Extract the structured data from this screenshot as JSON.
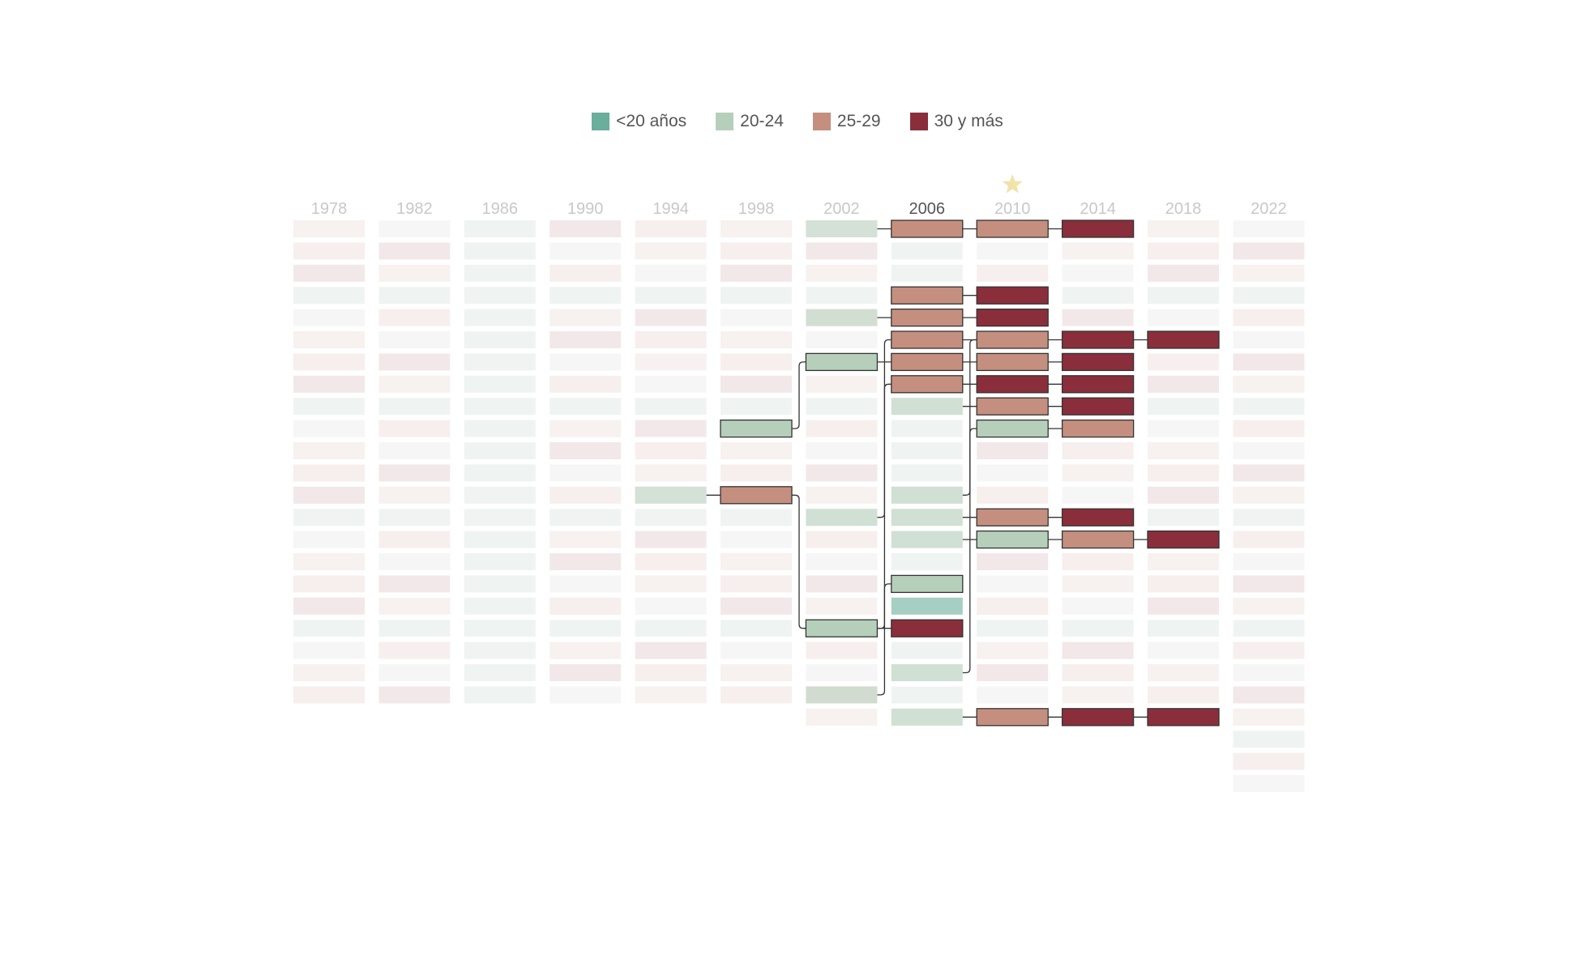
{
  "legend": [
    {
      "label": "<20 años",
      "color": "#6aae9c"
    },
    {
      "label": "20-24",
      "color": "#b6cfbb"
    },
    {
      "label": "25-29",
      "color": "#c48f7f"
    },
    {
      "label": "30 y más",
      "color": "#8a2e3c"
    }
  ],
  "star_icon": "star-icon",
  "chart_data": {
    "type": "table",
    "highlight_column": "2006",
    "star_column": "2010",
    "columns": [
      "1978",
      "1982",
      "1986",
      "1990",
      "1994",
      "1998",
      "2002",
      "2006",
      "2010",
      "2014",
      "2018",
      "2022"
    ],
    "categories": [
      "<20 años",
      "20-24",
      "25-29",
      "30 y más"
    ],
    "highlighted_cells": [
      {
        "year": "1994",
        "row": 12,
        "category": "20-24"
      },
      {
        "year": "1998",
        "row": 9,
        "category": "20-24"
      },
      {
        "year": "1998",
        "row": 12,
        "category": "25-29"
      },
      {
        "year": "2002",
        "row": 0,
        "category": "20-24"
      },
      {
        "year": "2002",
        "row": 4,
        "category": "20-24"
      },
      {
        "year": "2002",
        "row": 6,
        "category": "20-24"
      },
      {
        "year": "2002",
        "row": 13,
        "category": "20-24"
      },
      {
        "year": "2002",
        "row": 18,
        "category": "20-24"
      },
      {
        "year": "2002",
        "row": 21,
        "category": "20-24"
      },
      {
        "year": "2006",
        "row": 0,
        "category": "25-29"
      },
      {
        "year": "2006",
        "row": 3,
        "category": "25-29"
      },
      {
        "year": "2006",
        "row": 4,
        "category": "25-29"
      },
      {
        "year": "2006",
        "row": 5,
        "category": "25-29"
      },
      {
        "year": "2006",
        "row": 6,
        "category": "25-29"
      },
      {
        "year": "2006",
        "row": 7,
        "category": "25-29"
      },
      {
        "year": "2006",
        "row": 8,
        "category": "20-24"
      },
      {
        "year": "2006",
        "row": 12,
        "category": "20-24"
      },
      {
        "year": "2006",
        "row": 13,
        "category": "20-24"
      },
      {
        "year": "2006",
        "row": 14,
        "category": "20-24"
      },
      {
        "year": "2006",
        "row": 16,
        "category": "20-24"
      },
      {
        "year": "2006",
        "row": 17,
        "category": "<20 años"
      },
      {
        "year": "2006",
        "row": 18,
        "category": "30 y más"
      },
      {
        "year": "2006",
        "row": 20,
        "category": "20-24"
      },
      {
        "year": "2006",
        "row": 22,
        "category": "20-24"
      },
      {
        "year": "2010",
        "row": 0,
        "category": "25-29"
      },
      {
        "year": "2010",
        "row": 3,
        "category": "30 y más"
      },
      {
        "year": "2010",
        "row": 4,
        "category": "30 y más"
      },
      {
        "year": "2010",
        "row": 5,
        "category": "25-29"
      },
      {
        "year": "2010",
        "row": 6,
        "category": "25-29"
      },
      {
        "year": "2010",
        "row": 7,
        "category": "30 y más"
      },
      {
        "year": "2010",
        "row": 8,
        "category": "25-29"
      },
      {
        "year": "2010",
        "row": 9,
        "category": "20-24"
      },
      {
        "year": "2010",
        "row": 13,
        "category": "25-29"
      },
      {
        "year": "2010",
        "row": 14,
        "category": "20-24"
      },
      {
        "year": "2010",
        "row": 22,
        "category": "25-29"
      },
      {
        "year": "2014",
        "row": 0,
        "category": "30 y más"
      },
      {
        "year": "2014",
        "row": 5,
        "category": "30 y más"
      },
      {
        "year": "2014",
        "row": 6,
        "category": "30 y más"
      },
      {
        "year": "2014",
        "row": 7,
        "category": "30 y más"
      },
      {
        "year": "2014",
        "row": 8,
        "category": "30 y más"
      },
      {
        "year": "2014",
        "row": 9,
        "category": "25-29"
      },
      {
        "year": "2014",
        "row": 13,
        "category": "30 y más"
      },
      {
        "year": "2014",
        "row": 14,
        "category": "25-29"
      },
      {
        "year": "2014",
        "row": 22,
        "category": "30 y más"
      },
      {
        "year": "2018",
        "row": 5,
        "category": "30 y más"
      },
      {
        "year": "2018",
        "row": 14,
        "category": "30 y más"
      },
      {
        "year": "2018",
        "row": 22,
        "category": "30 y más"
      }
    ],
    "links": [
      {
        "from": [
          "1994",
          12
        ],
        "to": [
          "1998",
          12
        ]
      },
      {
        "from": [
          "1998",
          9
        ],
        "to": [
          "2002",
          6
        ]
      },
      {
        "from": [
          "1998",
          12
        ],
        "to": [
          "2002",
          18
        ]
      },
      {
        "from": [
          "2002",
          0
        ],
        "to": [
          "2006",
          0
        ]
      },
      {
        "from": [
          "2002",
          4
        ],
        "to": [
          "2006",
          4
        ]
      },
      {
        "from": [
          "2002",
          6
        ],
        "to": [
          "2006",
          6
        ]
      },
      {
        "from": [
          "2002",
          13
        ],
        "to": [
          "2006",
          7
        ]
      },
      {
        "from": [
          "2002",
          18
        ],
        "to": [
          "2006",
          16
        ]
      },
      {
        "from": [
          "2002",
          18
        ],
        "to": [
          "2006",
          18
        ]
      },
      {
        "from": [
          "2002",
          21
        ],
        "to": [
          "2006",
          5
        ]
      },
      {
        "from": [
          "2006",
          0
        ],
        "to": [
          "2010",
          0
        ]
      },
      {
        "from": [
          "2006",
          3
        ],
        "to": [
          "2010",
          3
        ]
      },
      {
        "from": [
          "2006",
          4
        ],
        "to": [
          "2010",
          4
        ]
      },
      {
        "from": [
          "2006",
          5
        ],
        "to": [
          "2010",
          5
        ]
      },
      {
        "from": [
          "2006",
          6
        ],
        "to": [
          "2010",
          6
        ]
      },
      {
        "from": [
          "2006",
          7
        ],
        "to": [
          "2010",
          7
        ]
      },
      {
        "from": [
          "2006",
          8
        ],
        "to": [
          "2010",
          8
        ]
      },
      {
        "from": [
          "2006",
          12
        ],
        "to": [
          "2010",
          9
        ]
      },
      {
        "from": [
          "2006",
          13
        ],
        "to": [
          "2010",
          13
        ]
      },
      {
        "from": [
          "2006",
          14
        ],
        "to": [
          "2010",
          14
        ]
      },
      {
        "from": [
          "2006",
          20
        ],
        "to": [
          "2010",
          5
        ]
      },
      {
        "from": [
          "2006",
          22
        ],
        "to": [
          "2010",
          22
        ]
      },
      {
        "from": [
          "2010",
          0
        ],
        "to": [
          "2014",
          0
        ]
      },
      {
        "from": [
          "2010",
          5
        ],
        "to": [
          "2014",
          5
        ]
      },
      {
        "from": [
          "2010",
          6
        ],
        "to": [
          "2014",
          6
        ]
      },
      {
        "from": [
          "2010",
          7
        ],
        "to": [
          "2014",
          7
        ]
      },
      {
        "from": [
          "2010",
          8
        ],
        "to": [
          "2014",
          8
        ]
      },
      {
        "from": [
          "2010",
          9
        ],
        "to": [
          "2014",
          9
        ]
      },
      {
        "from": [
          "2010",
          13
        ],
        "to": [
          "2014",
          13
        ]
      },
      {
        "from": [
          "2010",
          14
        ],
        "to": [
          "2014",
          14
        ]
      },
      {
        "from": [
          "2010",
          22
        ],
        "to": [
          "2014",
          22
        ]
      },
      {
        "from": [
          "2014",
          5
        ],
        "to": [
          "2018",
          5
        ]
      },
      {
        "from": [
          "2014",
          14
        ],
        "to": [
          "2018",
          14
        ]
      },
      {
        "from": [
          "2014",
          22
        ],
        "to": [
          "2018",
          22
        ]
      }
    ]
  }
}
